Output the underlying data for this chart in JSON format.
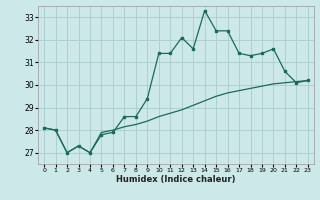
{
  "title": "",
  "xlabel": "Humidex (Indice chaleur)",
  "ylabel": "",
  "bg_color": "#cce8e8",
  "grid_color": "#aacccc",
  "line_color": "#1a6b5a",
  "xlim": [
    -0.5,
    23.5
  ],
  "ylim": [
    26.5,
    33.5
  ],
  "yticks": [
    27,
    28,
    29,
    30,
    31,
    32,
    33
  ],
  "xticks": [
    0,
    1,
    2,
    3,
    4,
    5,
    6,
    7,
    8,
    9,
    10,
    11,
    12,
    13,
    14,
    15,
    16,
    17,
    18,
    19,
    20,
    21,
    22,
    23
  ],
  "line1_x": [
    0,
    1,
    2,
    3,
    4,
    5,
    6,
    7,
    8,
    9,
    10,
    11,
    12,
    13,
    14,
    15,
    16,
    17,
    18,
    19,
    20,
    21,
    22,
    23
  ],
  "line1_y": [
    28.1,
    28.0,
    27.0,
    27.3,
    27.0,
    27.8,
    27.9,
    28.6,
    28.6,
    29.4,
    31.4,
    31.4,
    32.1,
    31.6,
    33.3,
    32.4,
    32.4,
    31.4,
    31.3,
    31.4,
    31.6,
    30.6,
    30.1,
    30.2
  ],
  "line2_x": [
    0,
    1,
    2,
    3,
    4,
    5,
    6,
    7,
    8,
    9,
    10,
    11,
    12,
    13,
    14,
    15,
    16,
    17,
    18,
    19,
    20,
    21,
    22,
    23
  ],
  "line2_y": [
    28.1,
    28.0,
    27.0,
    27.3,
    27.0,
    27.9,
    28.0,
    28.15,
    28.25,
    28.4,
    28.6,
    28.75,
    28.9,
    29.1,
    29.3,
    29.5,
    29.65,
    29.75,
    29.85,
    29.95,
    30.05,
    30.1,
    30.15,
    30.2
  ]
}
